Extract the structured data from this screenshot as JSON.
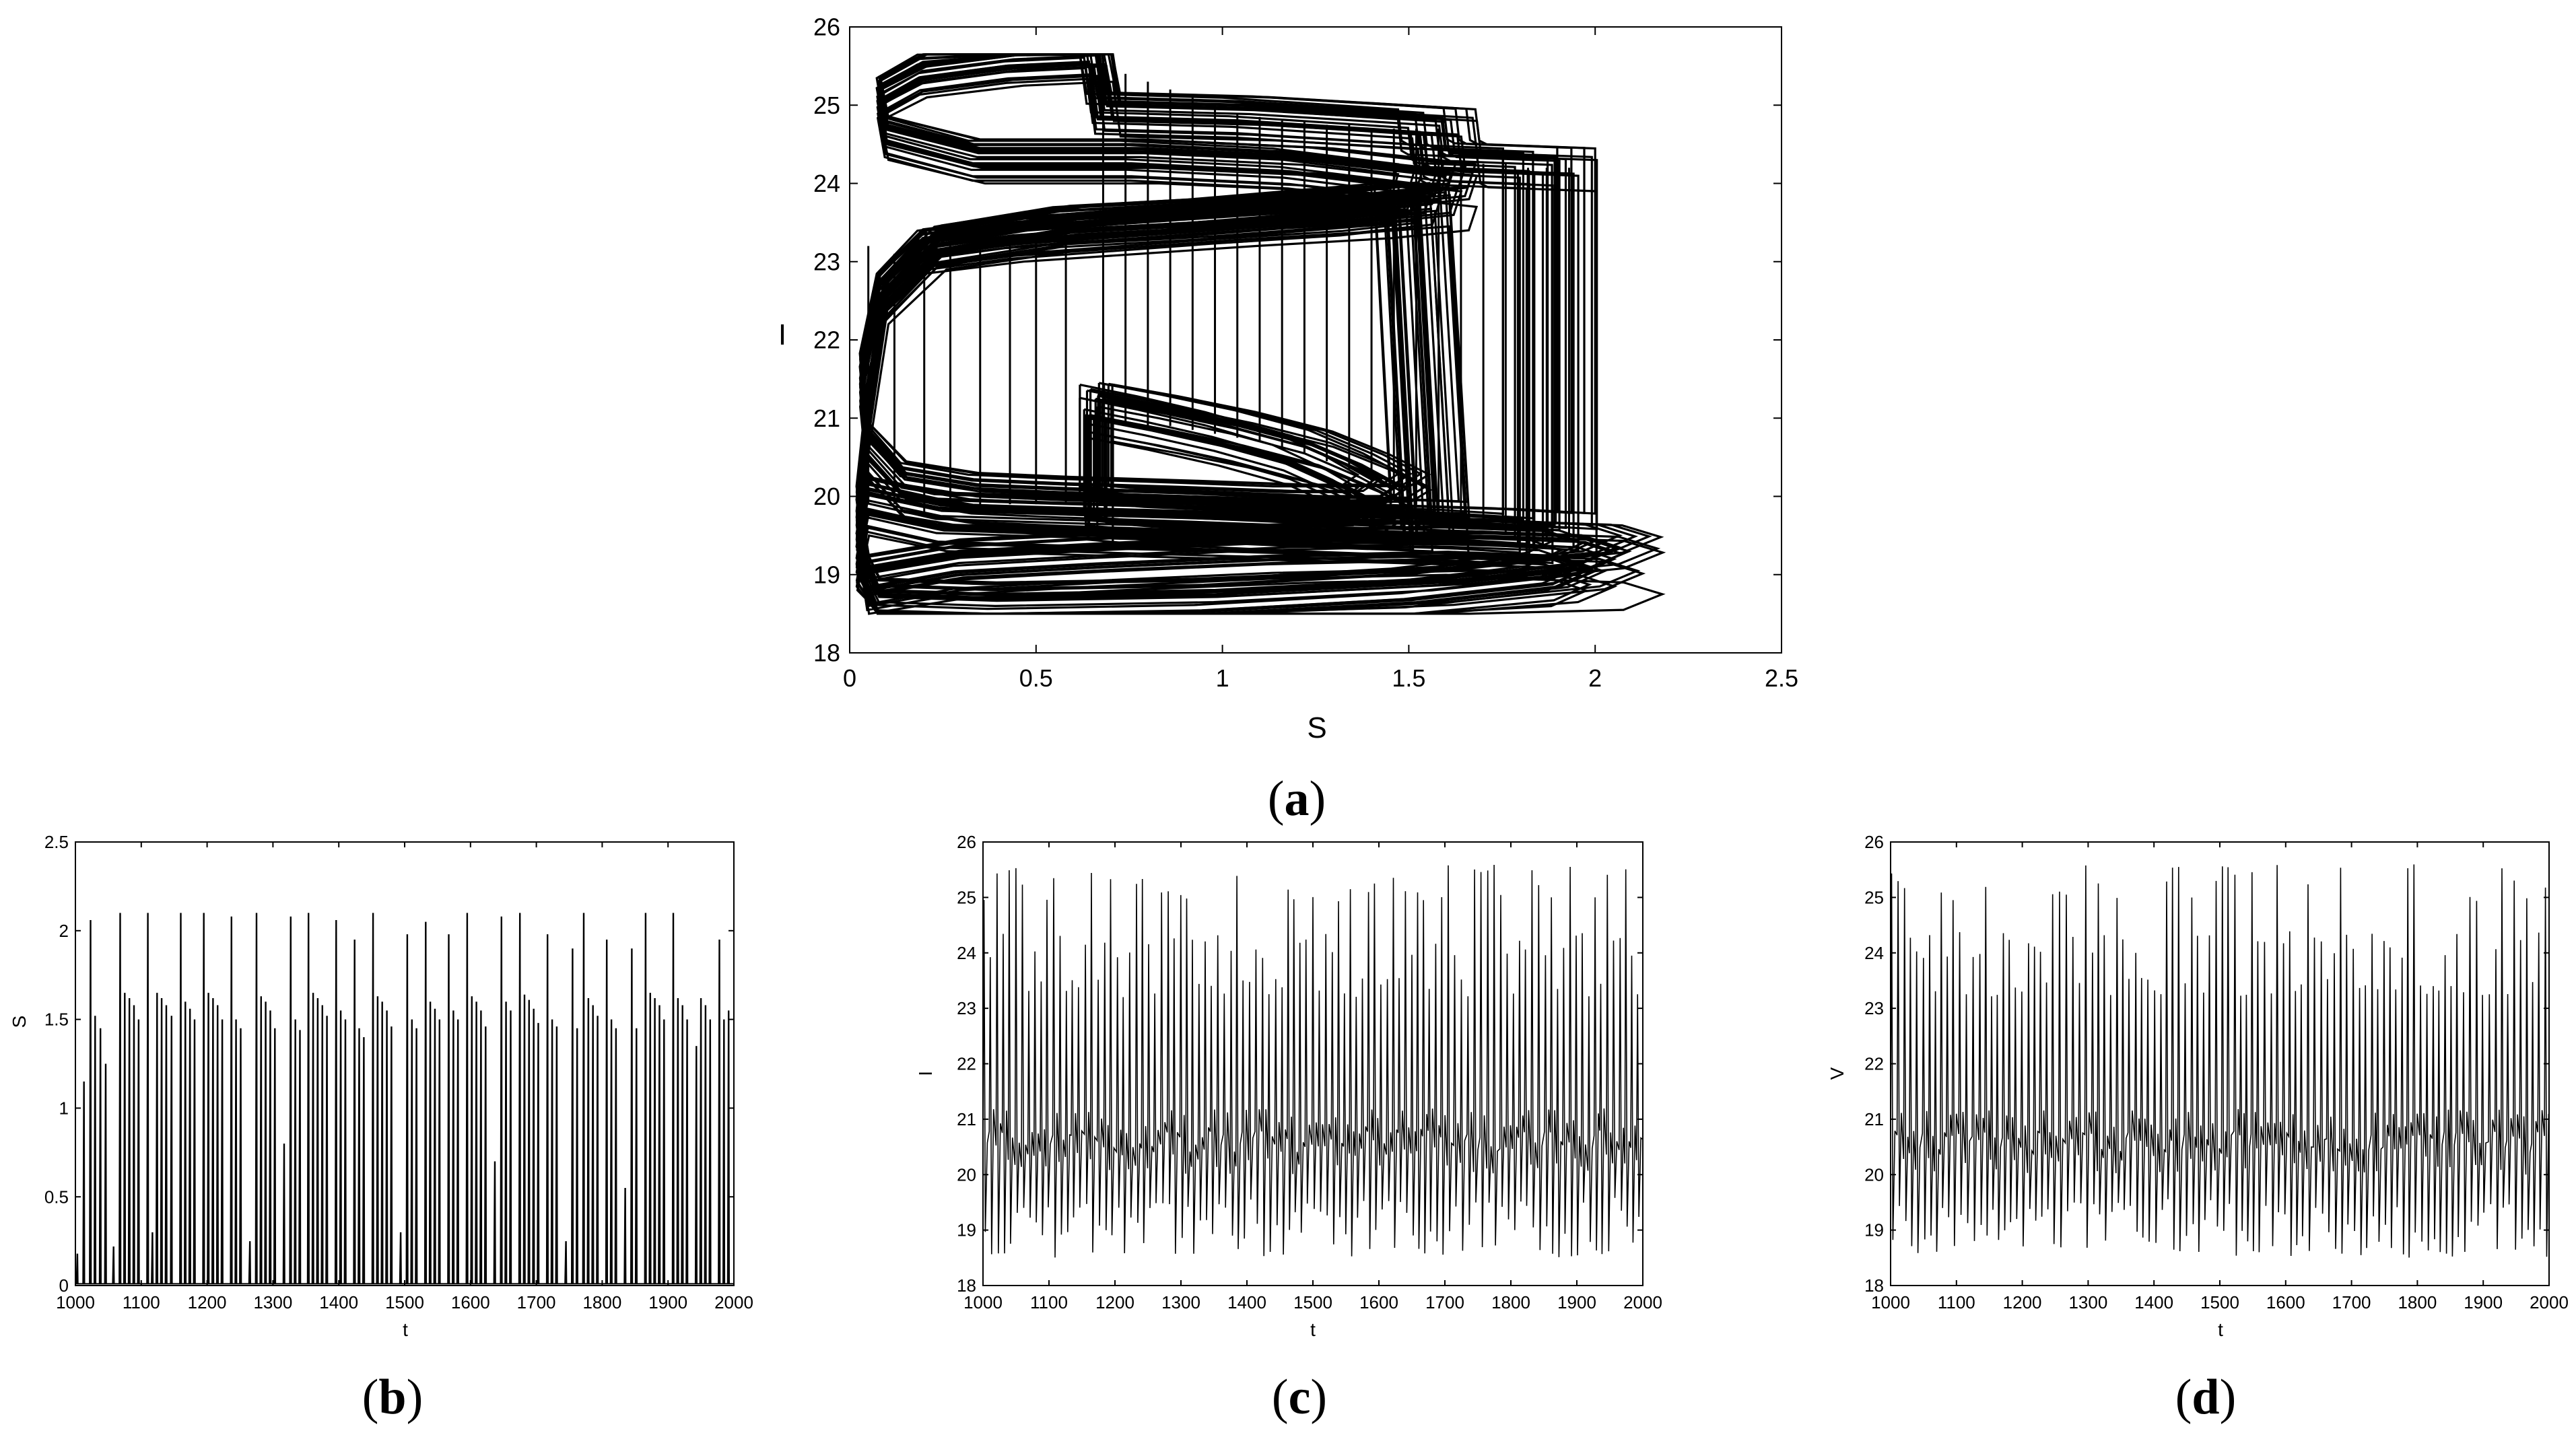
{
  "figure": {
    "panel_labels": [
      {
        "open": "(",
        "letter": "a",
        "close": ")"
      },
      {
        "open": "(",
        "letter": "b",
        "close": ")"
      },
      {
        "open": "(",
        "letter": "c",
        "close": ")"
      },
      {
        "open": "(",
        "letter": "d",
        "close": ")"
      }
    ]
  },
  "chart_data": [
    {
      "id": "a",
      "type": "line",
      "title": "",
      "xlabel": "S",
      "ylabel": "I",
      "xlim": [
        0,
        2.5
      ],
      "ylim": [
        18,
        26
      ],
      "xticks": [
        "0",
        "0.5",
        "1",
        "1.5",
        "2",
        "2.5"
      ],
      "yticks": [
        "18",
        "19",
        "20",
        "21",
        "22",
        "23",
        "24",
        "25",
        "26"
      ],
      "grid": false,
      "legend": "none",
      "description_of_series": "phase portrait I versus S; dense chaotic trajectory filling the region S 0 to 2.1, I 18.5 to 25.6",
      "series": [
        {
          "points": [
            [
              0.68,
              21.1
            ],
            [
              0.85,
              20.95
            ],
            [
              1.05,
              20.75
            ],
            [
              1.25,
              20.5
            ],
            [
              1.4,
              20.2
            ],
            [
              1.5,
              19.95
            ],
            [
              1.45,
              19.8
            ],
            [
              1.25,
              19.8
            ],
            [
              0.95,
              19.85
            ],
            [
              0.6,
              19.9
            ],
            [
              0.35,
              19.95
            ],
            [
              0.15,
              20.1
            ],
            [
              0.05,
              20.6
            ],
            [
              0.03,
              21.5
            ],
            [
              0.08,
              22.6
            ],
            [
              0.2,
              23.15
            ],
            [
              0.45,
              23.3
            ],
            [
              0.75,
              23.4
            ],
            [
              1.05,
              23.5
            ],
            [
              1.4,
              23.6
            ],
            [
              1.6,
              23.7
            ],
            [
              1.62,
              24.0
            ],
            [
              1.25,
              24.2
            ],
            [
              0.8,
              24.3
            ],
            [
              0.35,
              24.3
            ],
            [
              0.1,
              24.6
            ],
            [
              0.08,
              25.1
            ],
            [
              0.2,
              25.4
            ],
            [
              0.45,
              25.55
            ],
            [
              0.68,
              25.6
            ],
            [
              0.7,
              24.9
            ],
            [
              1.1,
              24.85
            ],
            [
              1.45,
              24.75
            ],
            [
              1.62,
              24.7
            ],
            [
              1.63,
              24.3
            ],
            [
              1.65,
              24.25
            ],
            [
              1.93,
              24.2
            ],
            [
              1.93,
              19.45
            ],
            [
              1.75,
              19.5
            ],
            [
              1.4,
              19.55
            ],
            [
              1.0,
              19.6
            ],
            [
              0.6,
              19.65
            ],
            [
              0.25,
              19.7
            ],
            [
              0.05,
              19.9
            ],
            [
              0.02,
              19.2
            ],
            [
              0.08,
              18.6
            ],
            [
              0.4,
              18.55
            ],
            [
              1.0,
              18.6
            ],
            [
              1.6,
              18.75
            ],
            [
              2.0,
              18.95
            ],
            [
              2.1,
              19.15
            ],
            [
              2.0,
              19.3
            ],
            [
              1.7,
              19.35
            ],
            [
              1.2,
              19.3
            ],
            [
              0.7,
              19.2
            ],
            [
              0.3,
              19.1
            ],
            [
              0.05,
              18.9
            ],
            [
              0.02,
              19.8
            ],
            [
              0.05,
              21.0
            ],
            [
              0.1,
              22.5
            ],
            [
              0.25,
              23.2
            ],
            [
              0.6,
              23.45
            ],
            [
              1.0,
              23.55
            ],
            [
              1.55,
              23.75
            ],
            [
              1.6,
              19.6
            ],
            [
              1.3,
              19.65
            ],
            [
              0.8,
              19.75
            ],
            [
              0.68,
              19.8
            ],
            [
              0.68,
              21.1
            ]
          ]
        }
      ],
      "vertical_segments": [
        {
          "x": 0.05,
          "y0": 19.9,
          "y1": 23.2
        },
        {
          "x": 0.12,
          "y0": 19.9,
          "y1": 23.1
        },
        {
          "x": 0.2,
          "y0": 19.8,
          "y1": 23.2
        },
        {
          "x": 0.27,
          "y0": 19.8,
          "y1": 23.2
        },
        {
          "x": 0.35,
          "y0": 19.9,
          "y1": 23.3
        },
        {
          "x": 0.43,
          "y0": 19.9,
          "y1": 23.3
        },
        {
          "x": 0.5,
          "y0": 19.9,
          "y1": 23.3
        },
        {
          "x": 0.58,
          "y0": 19.9,
          "y1": 23.4
        },
        {
          "x": 0.68,
          "y0": 21.1,
          "y1": 25.6
        },
        {
          "x": 0.74,
          "y0": 20.9,
          "y1": 25.4
        },
        {
          "x": 0.8,
          "y0": 20.9,
          "y1": 25.3
        },
        {
          "x": 0.86,
          "y0": 20.9,
          "y1": 25.2
        },
        {
          "x": 0.92,
          "y0": 20.85,
          "y1": 25.1
        },
        {
          "x": 0.98,
          "y0": 20.8,
          "y1": 25.0
        },
        {
          "x": 1.04,
          "y0": 20.75,
          "y1": 24.9
        },
        {
          "x": 1.1,
          "y0": 20.7,
          "y1": 24.85
        },
        {
          "x": 1.16,
          "y0": 20.6,
          "y1": 24.8
        },
        {
          "x": 1.22,
          "y0": 20.55,
          "y1": 24.8
        },
        {
          "x": 1.28,
          "y0": 20.45,
          "y1": 24.75
        },
        {
          "x": 1.34,
          "y0": 20.35,
          "y1": 24.75
        },
        {
          "x": 1.4,
          "y0": 20.2,
          "y1": 24.7
        },
        {
          "x": 1.46,
          "y0": 20.0,
          "y1": 24.7
        },
        {
          "x": 1.52,
          "y0": 19.9,
          "y1": 24.7
        },
        {
          "x": 1.58,
          "y0": 19.8,
          "y1": 24.7
        },
        {
          "x": 1.64,
          "y0": 19.7,
          "y1": 24.3
        },
        {
          "x": 1.7,
          "y0": 19.6,
          "y1": 24.25
        },
        {
          "x": 1.76,
          "y0": 19.55,
          "y1": 24.25
        },
        {
          "x": 1.82,
          "y0": 19.5,
          "y1": 24.2
        },
        {
          "x": 1.87,
          "y0": 19.45,
          "y1": 24.2
        },
        {
          "x": 1.93,
          "y0": 19.45,
          "y1": 24.2
        }
      ]
    },
    {
      "id": "b",
      "type": "line",
      "title": "",
      "xlabel": "t",
      "ylabel": "S",
      "xlim": [
        1000,
        2000
      ],
      "ylim": [
        0,
        2.5
      ],
      "xticks": [
        "1000",
        "1100",
        "1200",
        "1300",
        "1400",
        "1500",
        "1600",
        "1700",
        "1800",
        "1900",
        "2000"
      ],
      "yticks": [
        "0",
        "0.5",
        "1",
        "1.5",
        "2",
        "2.5"
      ],
      "grid": false,
      "legend": "none",
      "series": [
        {
          "peaks": [
            [
              1003,
              0.18
            ],
            [
              1013,
              1.15
            ],
            [
              1023,
              2.06
            ],
            [
              1030,
              1.52
            ],
            [
              1038,
              1.45
            ],
            [
              1046,
              1.25
            ],
            [
              1058,
              0.22
            ],
            [
              1068,
              2.1
            ],
            [
              1075,
              1.65
            ],
            [
              1082,
              1.62
            ],
            [
              1089,
              1.58
            ],
            [
              1096,
              1.5
            ],
            [
              1110,
              2.1
            ],
            [
              1117,
              0.3
            ],
            [
              1124,
              1.65
            ],
            [
              1131,
              1.62
            ],
            [
              1138,
              1.58
            ],
            [
              1146,
              1.52
            ],
            [
              1160,
              2.1
            ],
            [
              1167,
              1.6
            ],
            [
              1174,
              1.56
            ],
            [
              1181,
              1.5
            ],
            [
              1195,
              2.1
            ],
            [
              1202,
              1.65
            ],
            [
              1209,
              1.62
            ],
            [
              1216,
              1.58
            ],
            [
              1223,
              1.5
            ],
            [
              1237,
              2.08
            ],
            [
              1244,
              1.5
            ],
            [
              1251,
              1.45
            ],
            [
              1265,
              0.25
            ],
            [
              1275,
              2.1
            ],
            [
              1282,
              1.63
            ],
            [
              1289,
              1.6
            ],
            [
              1296,
              1.55
            ],
            [
              1303,
              1.45
            ],
            [
              1317,
              0.8
            ],
            [
              1327,
              2.08
            ],
            [
              1334,
              1.5
            ],
            [
              1341,
              1.44
            ],
            [
              1354,
              2.1
            ],
            [
              1361,
              1.65
            ],
            [
              1368,
              1.62
            ],
            [
              1375,
              1.58
            ],
            [
              1382,
              1.52
            ],
            [
              1396,
              2.06
            ],
            [
              1403,
              1.55
            ],
            [
              1410,
              1.5
            ],
            [
              1424,
              1.95
            ],
            [
              1431,
              1.45
            ],
            [
              1438,
              1.4
            ],
            [
              1452,
              2.1
            ],
            [
              1459,
              1.63
            ],
            [
              1466,
              1.6
            ],
            [
              1473,
              1.55
            ],
            [
              1480,
              1.46
            ],
            [
              1494,
              0.3
            ],
            [
              1504,
              1.98
            ],
            [
              1511,
              1.5
            ],
            [
              1518,
              1.45
            ],
            [
              1532,
              2.05
            ],
            [
              1539,
              1.6
            ],
            [
              1546,
              1.56
            ],
            [
              1553,
              1.5
            ],
            [
              1567,
              1.98
            ],
            [
              1574,
              1.55
            ],
            [
              1581,
              1.5
            ],
            [
              1595,
              2.1
            ],
            [
              1602,
              1.63
            ],
            [
              1609,
              1.6
            ],
            [
              1616,
              1.55
            ],
            [
              1623,
              1.46
            ],
            [
              1637,
              0.7
            ],
            [
              1647,
              2.08
            ],
            [
              1654,
              1.6
            ],
            [
              1661,
              1.55
            ],
            [
              1675,
              2.1
            ],
            [
              1682,
              1.64
            ],
            [
              1689,
              1.61
            ],
            [
              1696,
              1.56
            ],
            [
              1703,
              1.48
            ],
            [
              1717,
              1.98
            ],
            [
              1724,
              1.5
            ],
            [
              1731,
              1.46
            ],
            [
              1745,
              0.25
            ],
            [
              1755,
              1.9
            ],
            [
              1762,
              1.45
            ],
            [
              1772,
              2.1
            ],
            [
              1779,
              1.62
            ],
            [
              1786,
              1.58
            ],
            [
              1793,
              1.52
            ],
            [
              1807,
              1.95
            ],
            [
              1814,
              1.5
            ],
            [
              1821,
              1.45
            ],
            [
              1835,
              0.55
            ],
            [
              1845,
              1.9
            ],
            [
              1852,
              1.45
            ],
            [
              1866,
              2.1
            ],
            [
              1873,
              1.65
            ],
            [
              1880,
              1.62
            ],
            [
              1887,
              1.58
            ],
            [
              1894,
              1.5
            ],
            [
              1908,
              2.1
            ],
            [
              1915,
              1.62
            ],
            [
              1922,
              1.58
            ],
            [
              1929,
              1.5
            ],
            [
              1943,
              1.35
            ],
            [
              1950,
              1.62
            ],
            [
              1957,
              1.58
            ],
            [
              1964,
              1.5
            ],
            [
              1978,
              1.95
            ],
            [
              1985,
              1.5
            ],
            [
              1992,
              1.55
            ]
          ]
        }
      ]
    },
    {
      "id": "c",
      "type": "line",
      "title": "",
      "xlabel": "t",
      "ylabel": "I",
      "xlim": [
        1000,
        2000
      ],
      "ylim": [
        18,
        26
      ],
      "xticks": [
        "1000",
        "1100",
        "1200",
        "1300",
        "1400",
        "1500",
        "1600",
        "1700",
        "1800",
        "1900",
        "2000"
      ],
      "yticks": [
        "18",
        "19",
        "20",
        "21",
        "22",
        "23",
        "24",
        "25",
        "26"
      ],
      "grid": false,
      "legend": "none",
      "series": [
        {
          "oscillation": "dense chaotic oscillation of about 100 cycles between minima near 18.5 to 19.5 and maxima near 23.4 to 25.6"
        }
      ]
    },
    {
      "id": "d",
      "type": "line",
      "title": "",
      "xlabel": "t",
      "ylabel": "V",
      "xlim": [
        1000,
        2000
      ],
      "ylim": [
        18,
        26
      ],
      "xticks": [
        "1000",
        "1100",
        "1200",
        "1300",
        "1400",
        "1500",
        "1600",
        "1700",
        "1800",
        "1900",
        "2000"
      ],
      "yticks": [
        "18",
        "19",
        "20",
        "21",
        "22",
        "23",
        "24",
        "25",
        "26"
      ],
      "grid": false,
      "legend": "none",
      "series": [
        {
          "oscillation": "dense chaotic oscillation of about 100 cycles between minima near 18.5 to 19.5 and maxima near 23.4 to 25.6"
        }
      ]
    }
  ]
}
